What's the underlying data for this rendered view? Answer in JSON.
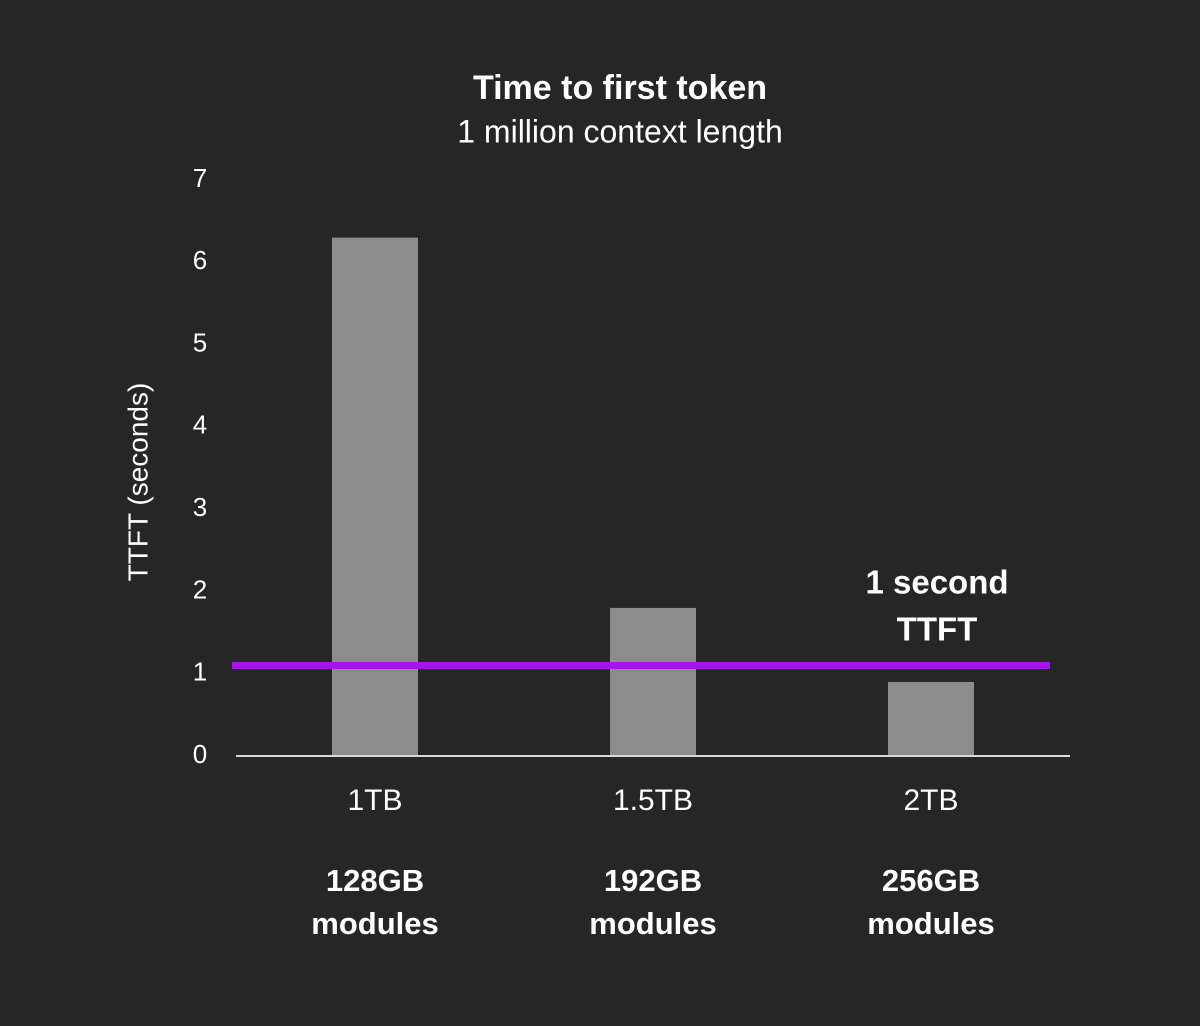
{
  "chart_data": {
    "type": "bar",
    "title": "Time to first token",
    "subtitle": "1 million context length",
    "y_label": "TTFT (seconds)",
    "categories": [
      "1TB",
      "1.5TB",
      "2TB"
    ],
    "category_sublabels": [
      [
        "128GB",
        "modules"
      ],
      [
        "192GB",
        "modules"
      ],
      [
        "256GB",
        "modules"
      ]
    ],
    "values": [
      6.3,
      1.8,
      0.9
    ],
    "color": "#8c8c8c",
    "ylim": [
      0,
      7
    ],
    "yticks": [
      0,
      1,
      2,
      3,
      4,
      5,
      6,
      7
    ],
    "grid": false,
    "reference_line": {
      "value": 1.1,
      "label": [
        "1 second",
        "TTFT"
      ],
      "color": "#a814e6"
    }
  }
}
